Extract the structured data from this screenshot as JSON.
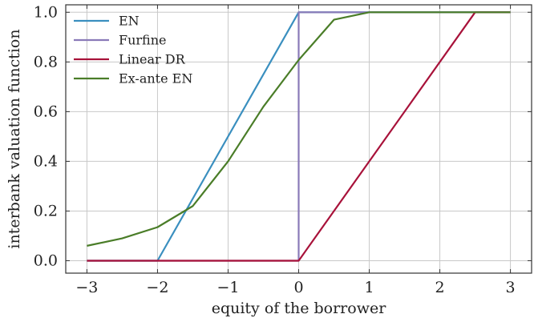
{
  "chart_data": {
    "type": "line",
    "xlabel": "equity of the borrower",
    "ylabel": "interbank valuation function",
    "xlim": [
      -3.3,
      3.3
    ],
    "ylim": [
      -0.05,
      1.03
    ],
    "xticks": [
      -3,
      -2,
      -1,
      0,
      1,
      2,
      3
    ],
    "xtick_labels": [
      "−3",
      "−2",
      "−1",
      "0",
      "1",
      "2",
      "3"
    ],
    "yticks": [
      0.0,
      0.2,
      0.4,
      0.6,
      0.8,
      1.0
    ],
    "ytick_labels": [
      "0.0",
      "0.2",
      "0.4",
      "0.6",
      "0.8",
      "1.0"
    ],
    "grid": true,
    "legend_position": "top-left",
    "series": [
      {
        "name": "EN",
        "color": "#3a8fbf",
        "x": [
          -3,
          -2,
          0,
          3
        ],
        "y": [
          0,
          0,
          1,
          1
        ]
      },
      {
        "name": "Furfine",
        "color": "#8a7ab8",
        "x": [
          -3,
          0,
          0,
          3
        ],
        "y": [
          0,
          0,
          1,
          1
        ]
      },
      {
        "name": "Linear DR",
        "color": "#a8123a",
        "x": [
          -3,
          0,
          2.5,
          3
        ],
        "y": [
          0,
          0,
          1,
          1
        ]
      },
      {
        "name": "Ex-ante EN",
        "color": "#4a7d28",
        "x": [
          -3,
          -2.5,
          -2,
          -1.5,
          -1,
          -0.5,
          0,
          0.5,
          1,
          1.5,
          2,
          2.5,
          3
        ],
        "y": [
          0.06,
          0.09,
          0.135,
          0.22,
          0.4,
          0.62,
          0.808,
          0.97,
          1.0,
          1.0,
          1.0,
          1.0,
          1.0
        ]
      }
    ]
  }
}
